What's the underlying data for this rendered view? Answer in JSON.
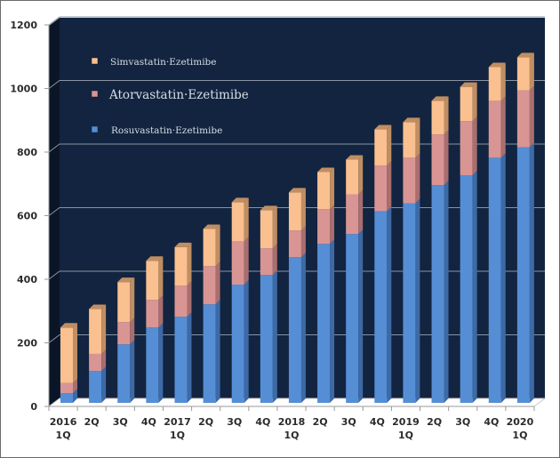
{
  "chart_data": {
    "type": "bar",
    "stacked": true,
    "style": "3d-column",
    "title": "",
    "xlabel": "",
    "ylabel": "",
    "ylim": [
      0,
      1200
    ],
    "yticks": [
      "0",
      "200",
      "400",
      "600",
      "800",
      "1000",
      "1200"
    ],
    "ytick_values": [
      0,
      200,
      400,
      600,
      800,
      1000,
      1200
    ],
    "grid": true,
    "legend_position": "top-left (inside plot)",
    "categories": [
      [
        "2016",
        "1Q"
      ],
      [
        "2Q"
      ],
      [
        "3Q"
      ],
      [
        "4Q"
      ],
      [
        "2017",
        "1Q"
      ],
      [
        "2Q"
      ],
      [
        "3Q"
      ],
      [
        "4Q"
      ],
      [
        "2018",
        "1Q"
      ],
      [
        "2Q"
      ],
      [
        "3Q"
      ],
      [
        "4Q"
      ],
      [
        "2019",
        "1Q"
      ],
      [
        "2Q"
      ],
      [
        "3Q"
      ],
      [
        "4Q"
      ],
      [
        "2020",
        "1Q"
      ]
    ],
    "series": [
      {
        "name": "Rosuvastatin·Ezetimibe",
        "color": "#558ed5",
        "side_color": "#3d6aa6",
        "top_color": "#7aa7e0",
        "values": [
          30,
          100,
          184,
          237,
          271,
          310,
          372,
          402,
          458,
          500,
          531,
          603,
          628,
          685,
          716,
          771,
          804
        ]
      },
      {
        "name": "Atorvastatin·Ezetimibe",
        "color": "#d99594",
        "side_color": "#a96e6e",
        "top_color": "#e6b1b0",
        "values": [
          32,
          54,
          70,
          87,
          98,
          120,
          136,
          84,
          84,
          109,
          125,
          143,
          143,
          159,
          170,
          179,
          179
        ]
      },
      {
        "name": "Simvastatin·Ezetimibe",
        "color": "#fac08f",
        "side_color": "#c08e62",
        "top_color": "#f5b98a",
        "values": [
          175,
          141,
          126,
          123,
          121,
          117,
          123,
          120,
          120,
          117,
          109,
          114,
          112,
          106,
          108,
          106,
          104
        ]
      }
    ],
    "legend": [
      {
        "name": "Simvastatin·Ezetimibe",
        "color": "#fac08f"
      },
      {
        "name": "Atorvastatin·Ezetimibe",
        "color": "#d99594"
      },
      {
        "name": "Rosuvastatin·Ezetimibe",
        "color": "#558ed5"
      }
    ],
    "colors": {
      "back_wall": "#12243f",
      "side_wall": "#0a1628",
      "floor": "#ffffff",
      "gridline": "#8a93a3",
      "axis": "#9a9a9a"
    }
  }
}
